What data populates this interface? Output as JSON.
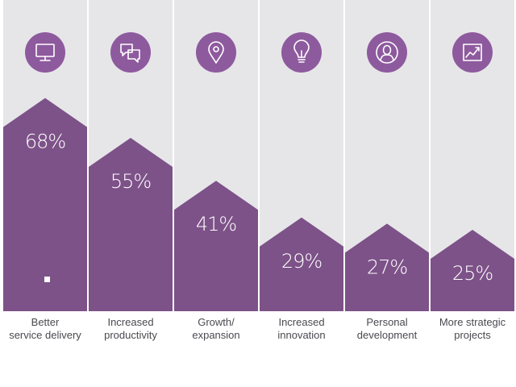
{
  "chart_data": {
    "type": "bar",
    "title": "",
    "xlabel": "",
    "ylabel": "",
    "unit": "%",
    "ylim": [
      0,
      100
    ],
    "categories": [
      [
        "Better",
        "service delivery"
      ],
      [
        "Increased",
        "productivity"
      ],
      [
        "Growth/",
        "expansion"
      ],
      [
        "Increased",
        "innovation"
      ],
      [
        "Personal",
        "development"
      ],
      [
        "More strategic",
        "projects"
      ]
    ],
    "values": [
      68,
      55,
      41,
      29,
      27,
      25
    ],
    "value_labels": [
      "68%",
      "55%",
      "41%",
      "29%",
      "27%",
      "25%"
    ],
    "icons": [
      "monitor-icon",
      "chat-bubbles-icon",
      "map-pin-icon",
      "lightbulb-icon",
      "person-icon",
      "trend-chart-icon"
    ],
    "colors": {
      "bar": "#7d5288",
      "icon": "#8e5a9e",
      "column_bg": "#e6e6e8",
      "label": "#4a4a50"
    }
  }
}
